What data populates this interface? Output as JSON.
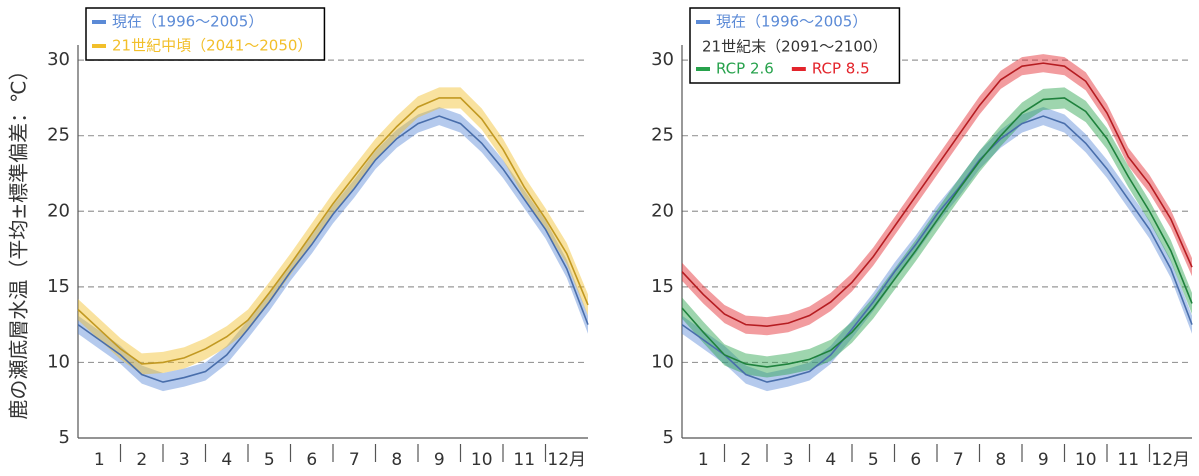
{
  "chart_data": [
    {
      "type": "line",
      "ylabel": "鹿の瀬底層水温（平均±標準偏差：℃）",
      "x": [
        0,
        0.5,
        1,
        1.5,
        2,
        2.5,
        3,
        3.5,
        4,
        4.5,
        5,
        5.5,
        6,
        6.5,
        7,
        7.5,
        8,
        8.5,
        9,
        9.5,
        10,
        10.5,
        11,
        11.5,
        12
      ],
      "xlim": [
        0,
        12
      ],
      "xticks": [
        {
          "value": 0.5,
          "label": "1"
        },
        {
          "value": 1.5,
          "label": "2"
        },
        {
          "value": 2.5,
          "label": "3"
        },
        {
          "value": 3.5,
          "label": "4"
        },
        {
          "value": 4.5,
          "label": "5"
        },
        {
          "value": 5.5,
          "label": "6"
        },
        {
          "value": 6.5,
          "label": "7"
        },
        {
          "value": 7.5,
          "label": "8"
        },
        {
          "value": 8.5,
          "label": "9"
        },
        {
          "value": 9.5,
          "label": "10"
        },
        {
          "value": 10.5,
          "label": "11"
        },
        {
          "value": 11.5,
          "label": "12月"
        }
      ],
      "xminorticks": [
        1,
        2,
        3,
        4,
        5,
        6,
        7,
        8,
        9,
        10,
        11
      ],
      "ylim": [
        5,
        31
      ],
      "yticks": [
        5,
        10,
        15,
        20,
        25,
        30
      ],
      "grid": true,
      "legend": "upper left",
      "series": [
        {
          "name": "現在（1996～2005）",
          "color": "#5b8ad6",
          "sd": 0.6,
          "values": [
            12.5,
            11.5,
            10.5,
            9.2,
            8.7,
            9.0,
            9.4,
            10.5,
            12.2,
            14.0,
            16.0,
            17.8,
            19.8,
            21.5,
            23.4,
            24.8,
            25.8,
            26.3,
            25.8,
            24.5,
            22.8,
            20.8,
            18.8,
            16.2,
            12.5
          ]
        },
        {
          "name": "21世紀中頃（2041～2050）",
          "color": "#f2bf2a",
          "sd": 0.7,
          "values": [
            13.5,
            12.2,
            10.9,
            9.9,
            10.0,
            10.3,
            10.9,
            11.7,
            12.8,
            14.6,
            16.5,
            18.5,
            20.5,
            22.3,
            24.1,
            25.6,
            26.9,
            27.5,
            27.5,
            26.1,
            24.1,
            21.6,
            19.5,
            17.2,
            13.8
          ]
        }
      ]
    },
    {
      "type": "line",
      "x": [
        0,
        0.5,
        1,
        1.5,
        2,
        2.5,
        3,
        3.5,
        4,
        4.5,
        5,
        5.5,
        6,
        6.5,
        7,
        7.5,
        8,
        8.5,
        9,
        9.5,
        10,
        10.5,
        11,
        11.5,
        12
      ],
      "xlim": [
        0,
        12
      ],
      "xticks": [
        {
          "value": 0.5,
          "label": "1"
        },
        {
          "value": 1.5,
          "label": "2"
        },
        {
          "value": 2.5,
          "label": "3"
        },
        {
          "value": 3.5,
          "label": "4"
        },
        {
          "value": 4.5,
          "label": "5"
        },
        {
          "value": 5.5,
          "label": "6"
        },
        {
          "value": 6.5,
          "label": "7"
        },
        {
          "value": 7.5,
          "label": "8"
        },
        {
          "value": 8.5,
          "label": "9"
        },
        {
          "value": 9.5,
          "label": "10"
        },
        {
          "value": 10.5,
          "label": "11"
        },
        {
          "value": 11.5,
          "label": "12月"
        }
      ],
      "xminorticks": [
        1,
        2,
        3,
        4,
        5,
        6,
        7,
        8,
        9,
        10,
        11
      ],
      "ylim": [
        5,
        31
      ],
      "yticks": [
        5,
        10,
        15,
        20,
        25,
        30
      ],
      "grid": true,
      "legend": "upper left",
      "legend_note": "21世紀末（2091～2100）",
      "series": [
        {
          "name": "現在（1996～2005）",
          "color": "#5b8ad6",
          "sd": 0.6,
          "values": [
            12.5,
            11.5,
            10.5,
            9.2,
            8.7,
            9.0,
            9.4,
            10.5,
            12.2,
            14.0,
            16.0,
            17.8,
            19.8,
            21.5,
            23.4,
            24.8,
            25.8,
            26.3,
            25.8,
            24.5,
            22.8,
            20.8,
            18.8,
            16.2,
            12.5
          ]
        },
        {
          "name": "RCP 2.6",
          "color": "#27a24c",
          "sd": 0.7,
          "values": [
            13.6,
            12.0,
            10.5,
            9.9,
            9.7,
            9.9,
            10.2,
            10.8,
            12.0,
            13.6,
            15.5,
            17.4,
            19.4,
            21.4,
            23.3,
            25.0,
            26.5,
            27.4,
            27.5,
            26.6,
            24.8,
            22.3,
            20.0,
            17.4,
            13.9
          ]
        },
        {
          "name": "RCP 8.5",
          "color": "#e3242b",
          "sd": 0.6,
          "values": [
            16.0,
            14.5,
            13.2,
            12.5,
            12.4,
            12.6,
            13.1,
            14.0,
            15.3,
            17.0,
            19.0,
            21.0,
            23.0,
            25.0,
            27.0,
            28.7,
            29.6,
            29.8,
            29.6,
            28.6,
            26.5,
            23.6,
            21.8,
            19.5,
            16.3
          ]
        }
      ]
    }
  ]
}
